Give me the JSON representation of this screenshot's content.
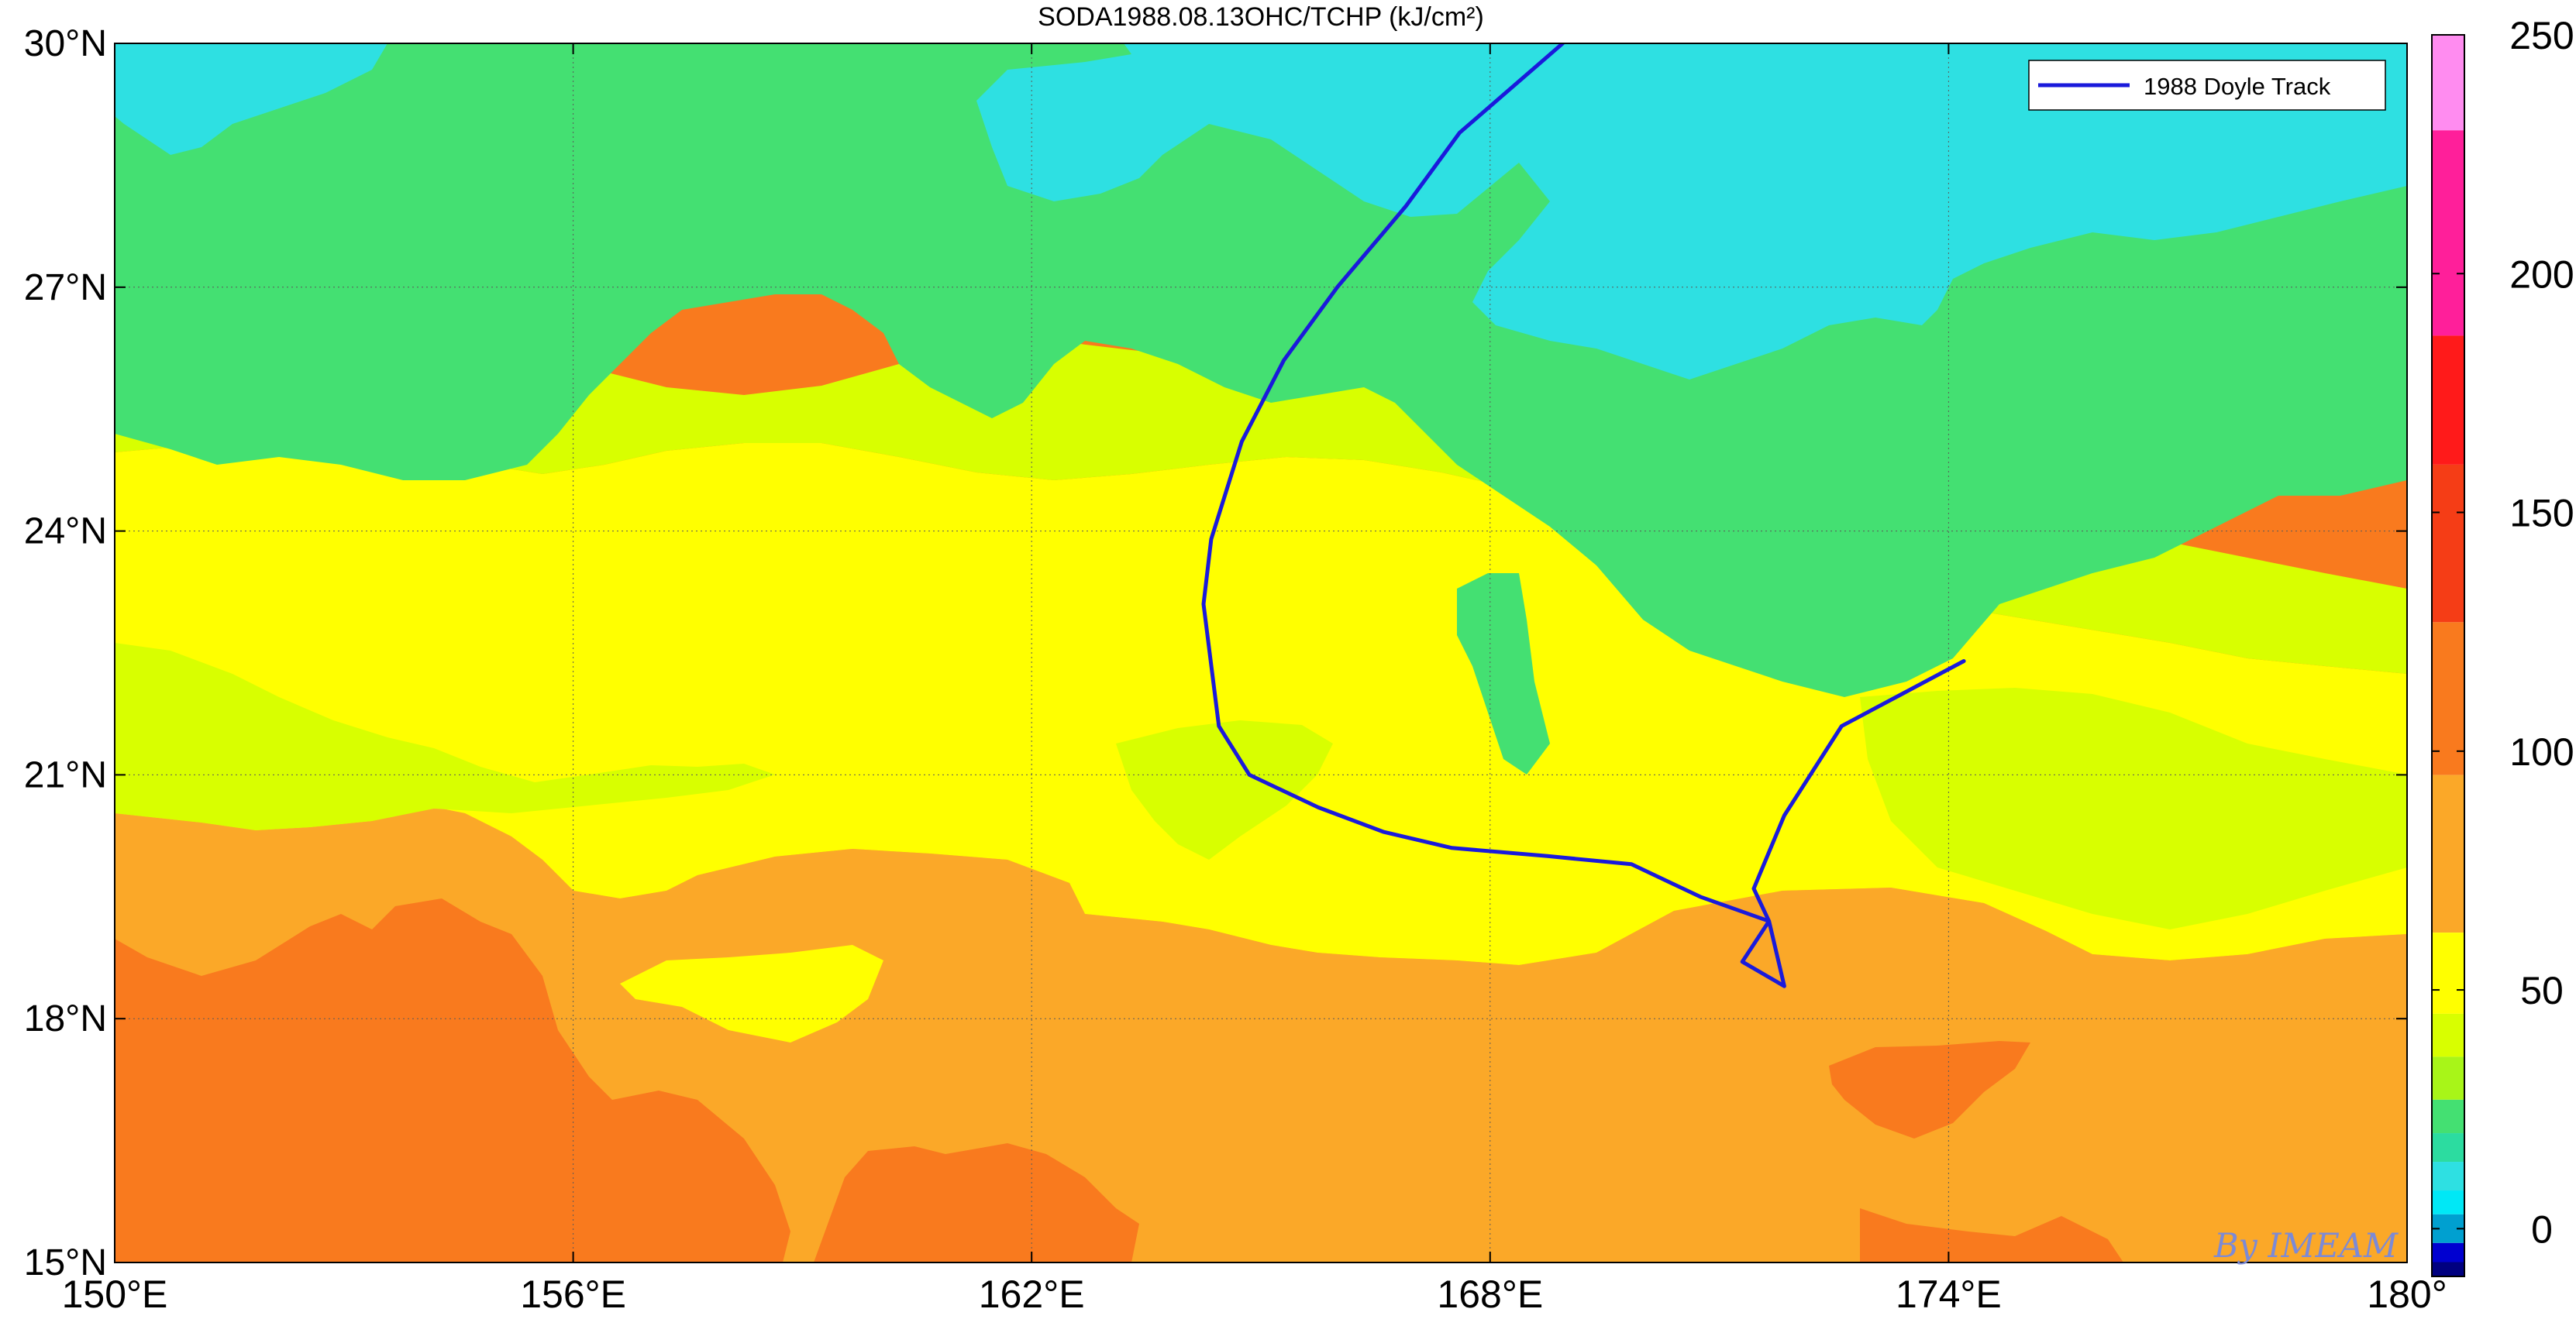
{
  "title": "SODA1988.08.13OHC/TCHP (kJ/cm²)",
  "watermark": "By IMEAM",
  "legend": {
    "entries": [
      {
        "label": "1988 Doyle Track",
        "color": "#1a1adb"
      }
    ],
    "placement": "top-right"
  },
  "axes": {
    "x_ticks": [
      "150°E",
      "156°E",
      "162°E",
      "168°E",
      "174°E",
      "180°"
    ],
    "y_ticks": [
      "30°N",
      "27°N",
      "24°N",
      "21°N",
      "18°N",
      "15°N"
    ],
    "lon_range": [
      150,
      180
    ],
    "lat_range": [
      15,
      30
    ],
    "grid": true
  },
  "colorbar": {
    "ticks": [
      "250",
      "200",
      "150",
      "100",
      "50",
      "0"
    ],
    "range": [
      -10,
      250
    ],
    "bands": [
      {
        "from": 230,
        "to": 250,
        "color": "#ff8cf0"
      },
      {
        "from": 187,
        "to": 230,
        "color": "#ff1f9a"
      },
      {
        "from": 160,
        "to": 187,
        "color": "#ff1a1a"
      },
      {
        "from": 127,
        "to": 160,
        "color": "#f53d16"
      },
      {
        "from": 95,
        "to": 127,
        "color": "#f97a1e"
      },
      {
        "from": 62,
        "to": 95,
        "color": "#fba828"
      },
      {
        "from": 45,
        "to": 62,
        "color": "#ffff00"
      },
      {
        "from": 36,
        "to": 45,
        "color": "#d8ff00"
      },
      {
        "from": 27,
        "to": 36,
        "color": "#a8f518"
      },
      {
        "from": 20,
        "to": 27,
        "color": "#44e072"
      },
      {
        "from": 14,
        "to": 20,
        "color": "#2cdca0"
      },
      {
        "from": 8,
        "to": 14,
        "color": "#2ee0e2"
      },
      {
        "from": 3,
        "to": 8,
        "color": "#00e8f6"
      },
      {
        "from": -3,
        "to": 3,
        "color": "#00a0d0"
      },
      {
        "from": -7,
        "to": -3,
        "color": "#0000d0"
      },
      {
        "from": -10,
        "to": -7,
        "color": "#000080"
      }
    ]
  },
  "map_colors": {
    "very_high": "#f97a1e",
    "high": "#fba828",
    "mid_high": "#ffff00",
    "mid": "#d8ff00",
    "low": "#44e072",
    "very_low": "#2ee0e2"
  },
  "chart_data": {
    "type": "map",
    "title": "SODA1988.08.13OHC/TCHP (kJ/cm²)",
    "x_axis": {
      "min": 150,
      "max": 180,
      "ticks": [
        150,
        156,
        162,
        168,
        174,
        180
      ]
    },
    "y_axis": {
      "min": 15,
      "max": 30,
      "ticks": [
        15,
        18,
        21,
        24,
        27,
        30
      ]
    },
    "series": [
      {
        "name": "1988 Doyle Track",
        "type": "line",
        "color": "#1a1adb",
        "points": [
          [
            168.95,
            30.0
          ],
          [
            167.6,
            28.9
          ],
          [
            166.9,
            28.0
          ],
          [
            166.0,
            27.0
          ],
          [
            165.3,
            26.1
          ],
          [
            164.75,
            25.1
          ],
          [
            164.35,
            23.9
          ],
          [
            164.25,
            23.1
          ],
          [
            164.45,
            21.6
          ],
          [
            164.85,
            21.0
          ],
          [
            165.75,
            20.6
          ],
          [
            166.6,
            20.3
          ],
          [
            167.5,
            20.1
          ],
          [
            168.75,
            20.0
          ],
          [
            169.85,
            19.9
          ],
          [
            170.75,
            19.5
          ],
          [
            171.65,
            19.2
          ],
          [
            171.3,
            18.7
          ],
          [
            171.85,
            18.4
          ],
          [
            171.65,
            19.2
          ],
          [
            171.45,
            19.6
          ],
          [
            171.85,
            20.5
          ],
          [
            172.6,
            21.6
          ],
          [
            173.4,
            22.0
          ],
          [
            174.2,
            22.4
          ]
        ]
      }
    ],
    "colorbar": {
      "min": -10,
      "max": 250,
      "ticks": [
        0,
        50,
        100,
        150,
        200,
        250
      ]
    }
  }
}
